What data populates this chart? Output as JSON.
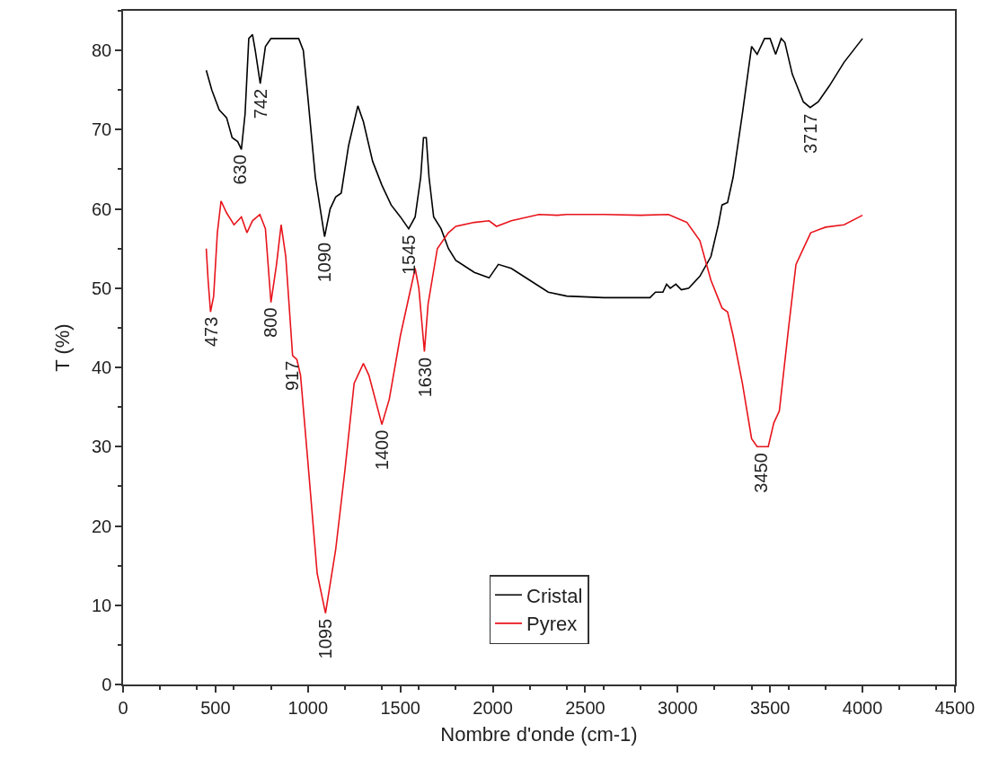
{
  "chart_data": {
    "type": "line",
    "xlabel": "Nombre d'onde (cm-1)",
    "ylabel": "T (%)",
    "xlim": [
      0,
      4500
    ],
    "xticks": [
      0,
      500,
      1000,
      1500,
      2000,
      2500,
      3000,
      3500,
      4000,
      4500
    ],
    "ylim": [
      0,
      85
    ],
    "yticks": [
      0,
      10,
      20,
      30,
      40,
      50,
      60,
      70,
      80
    ],
    "grid": false,
    "legend": "bottom",
    "marker": "none",
    "line_style": "solid",
    "series": [
      {
        "name": "Cristal",
        "color": "#000000",
        "x": [
          450,
          480,
          520,
          560,
          590,
          620,
          640,
          660,
          680,
          700,
          715,
          742,
          770,
          800,
          850,
          950,
          975,
          1000,
          1040,
          1090,
          1120,
          1150,
          1180,
          1220,
          1270,
          1300,
          1350,
          1400,
          1450,
          1500,
          1545,
          1580,
          1610,
          1625,
          1640,
          1655,
          1680,
          1720,
          1760,
          1800,
          1900,
          1980,
          2030,
          2100,
          2200,
          2300,
          2400,
          2600,
          2850,
          2880,
          2920,
          2940,
          2960,
          2990,
          3020,
          3060,
          3120,
          3180,
          3220,
          3240,
          3270,
          3300,
          3350,
          3400,
          3430,
          3470,
          3500,
          3530,
          3560,
          3580,
          3620,
          3680,
          3717,
          3760,
          3820,
          3900,
          3950,
          4000
        ],
        "values": [
          77.5,
          75,
          72.5,
          71.5,
          69,
          68.5,
          67.5,
          72,
          81.5,
          82,
          80,
          75.8,
          80.5,
          81.5,
          81.5,
          81.5,
          80,
          74,
          64,
          56.5,
          60,
          61.5,
          62,
          68,
          73,
          71,
          66,
          63,
          60.5,
          59,
          57.5,
          59,
          64,
          69,
          69,
          64,
          59,
          57.5,
          55,
          53.5,
          52,
          51.3,
          53,
          52.5,
          51,
          49.5,
          49,
          48.8,
          48.8,
          49.5,
          49.5,
          50.5,
          50,
          50.5,
          49.8,
          50,
          51.5,
          54,
          58,
          60.5,
          60.8,
          64,
          72,
          80.5,
          79.5,
          81.5,
          81.5,
          79.5,
          81.5,
          81,
          77,
          73.5,
          72.8,
          73.5,
          75.5,
          78.5,
          80,
          81.5
        ]
      },
      {
        "name": "Pyrex",
        "color": "#e8141c",
        "x": [
          450,
          460,
          473,
          490,
          510,
          530,
          560,
          600,
          640,
          670,
          700,
          740,
          770,
          800,
          830,
          855,
          880,
          917,
          940,
          960,
          1000,
          1050,
          1095,
          1150,
          1200,
          1250,
          1300,
          1330,
          1400,
          1440,
          1500,
          1580,
          1600,
          1630,
          1650,
          1700,
          1760,
          1800,
          1900,
          1980,
          2020,
          2100,
          2250,
          2350,
          2400,
          2600,
          2800,
          2950,
          3050,
          3120,
          3180,
          3240,
          3270,
          3300,
          3350,
          3400,
          3430,
          3460,
          3490,
          3520,
          3550,
          3600,
          3640,
          3680,
          3720,
          3800,
          3900,
          4000
        ],
        "values": [
          55,
          51,
          47,
          49,
          57,
          61,
          59.5,
          58,
          59,
          57,
          58.5,
          59.3,
          57.5,
          48.2,
          53,
          58,
          54,
          41.5,
          41,
          39,
          28,
          14,
          9,
          17,
          27,
          38,
          40.5,
          39,
          32.8,
          36,
          44,
          52.5,
          50,
          42,
          48,
          55,
          57,
          57.8,
          58.3,
          58.5,
          57.8,
          58.5,
          59.3,
          59.2,
          59.3,
          59.3,
          59.2,
          59.3,
          58.3,
          56,
          51,
          47.5,
          47,
          44,
          38,
          31,
          30,
          30,
          30,
          33,
          34.5,
          45,
          53,
          55,
          57,
          57.7,
          58,
          59.2
        ]
      }
    ],
    "annotations": [
      {
        "text": "630",
        "x": 630,
        "y": 67.5
      },
      {
        "text": "742",
        "x": 742,
        "y": 75.8
      },
      {
        "text": "1090",
        "x": 1090,
        "y": 56.5
      },
      {
        "text": "1545",
        "x": 1545,
        "y": 57.5
      },
      {
        "text": "3717",
        "x": 3717,
        "y": 72.8
      },
      {
        "text": "473",
        "x": 473,
        "y": 47
      },
      {
        "text": "800",
        "x": 800,
        "y": 48.2
      },
      {
        "text": "917",
        "x": 917,
        "y": 41.5
      },
      {
        "text": "1095",
        "x": 1095,
        "y": 9
      },
      {
        "text": "1400",
        "x": 1400,
        "y": 32.8
      },
      {
        "text": "1630",
        "x": 1630,
        "y": 42
      },
      {
        "text": "3450",
        "x": 3450,
        "y": 30
      }
    ]
  }
}
